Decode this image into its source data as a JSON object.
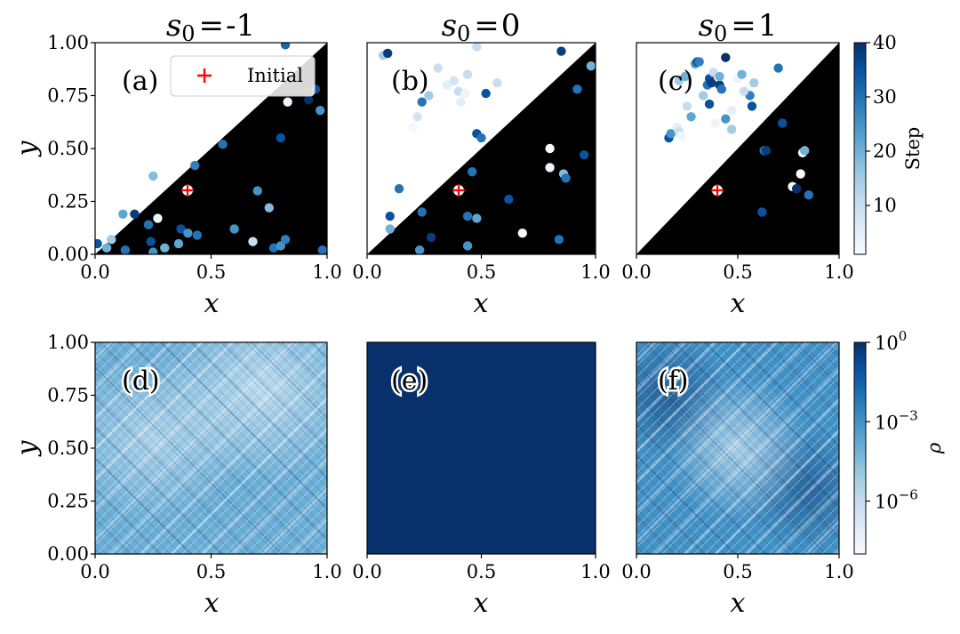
{
  "chart_data": {
    "type": "scatter",
    "figure": "2x3 panel grid",
    "colormap": "Blues",
    "top_row": {
      "panels": [
        {
          "label": "(a)",
          "title_var": "s",
          "title_sub": "0",
          "title_eq": "=",
          "title_val": "-1",
          "shaded_region": "y < x",
          "legend": "Initial"
        },
        {
          "label": "(b)",
          "title_var": "s",
          "title_sub": "0",
          "title_eq": "=",
          "title_val": "0",
          "shaded_region": "y < x"
        },
        {
          "label": "(c)",
          "title_var": "s",
          "title_sub": "0",
          "title_eq": "=",
          "title_val": "1",
          "shaded_region": "y < x"
        }
      ],
      "initial_point": {
        "x": 0.4,
        "y": 0.3
      },
      "points": [
        [
          [
            0.01,
            0.05,
            35
          ],
          [
            0.05,
            0.03,
            20
          ],
          [
            0.07,
            0.07,
            15
          ],
          [
            0.12,
            0.19,
            22
          ],
          [
            0.17,
            0.19,
            38
          ],
          [
            0.23,
            0.14,
            30
          ],
          [
            0.24,
            0.06,
            35
          ],
          [
            0.25,
            0.37,
            18
          ],
          [
            0.25,
            0.01,
            25
          ],
          [
            0.27,
            0.17,
            3
          ],
          [
            0.37,
            0.12,
            35
          ],
          [
            0.4,
            0.1,
            25
          ],
          [
            0.43,
            0.42,
            28
          ],
          [
            0.44,
            0.09,
            30
          ],
          [
            0.68,
            0.06,
            10
          ],
          [
            0.75,
            0.22,
            18
          ],
          [
            0.77,
            0.03,
            30
          ],
          [
            0.8,
            0.04,
            25
          ],
          [
            0.82,
            0.07,
            28
          ],
          [
            0.83,
            0.72,
            3
          ],
          [
            0.82,
            0.99,
            32
          ],
          [
            0.92,
            0.73,
            40
          ],
          [
            0.95,
            0.78,
            35
          ],
          [
            0.97,
            0.68,
            25
          ],
          [
            0.98,
            0.02,
            30
          ],
          [
            0.8,
            0.55,
            35
          ],
          [
            0.6,
            0.12,
            25
          ],
          [
            0.55,
            0.52,
            30
          ],
          [
            0.13,
            0.02,
            30
          ],
          [
            0.36,
            0.05,
            22
          ],
          [
            0.7,
            0.3,
            25
          ],
          [
            0.3,
            0.03,
            20
          ]
        ],
        [
          [
            0.07,
            0.94,
            15
          ],
          [
            0.09,
            0.95,
            38
          ],
          [
            0.1,
            0.18,
            35
          ],
          [
            0.1,
            0.12,
            20
          ],
          [
            0.14,
            0.31,
            30
          ],
          [
            0.2,
            0.6,
            2
          ],
          [
            0.22,
            0.65,
            8
          ],
          [
            0.23,
            0.02,
            25
          ],
          [
            0.24,
            0.72,
            30
          ],
          [
            0.24,
            0.2,
            30
          ],
          [
            0.27,
            0.75,
            15
          ],
          [
            0.28,
            0.08,
            38
          ],
          [
            0.31,
            0.88,
            10
          ],
          [
            0.35,
            0.8,
            5
          ],
          [
            0.38,
            0.82,
            8
          ],
          [
            0.4,
            0.77,
            10
          ],
          [
            0.41,
            0.72,
            5
          ],
          [
            0.43,
            0.76,
            3
          ],
          [
            0.44,
            0.85,
            10
          ],
          [
            0.44,
            0.18,
            30
          ],
          [
            0.44,
            0.04,
            25
          ],
          [
            0.46,
            0.39,
            30
          ],
          [
            0.48,
            0.98,
            10
          ],
          [
            0.48,
            0.57,
            35
          ],
          [
            0.5,
            0.55,
            30
          ],
          [
            0.52,
            0.76,
            35
          ],
          [
            0.57,
            0.81,
            10
          ],
          [
            0.62,
            0.26,
            35
          ],
          [
            0.68,
            0.1,
            1
          ],
          [
            0.8,
            0.5,
            1
          ],
          [
            0.8,
            0.41,
            3
          ],
          [
            0.84,
            0.07,
            30
          ],
          [
            0.85,
            0.96,
            38
          ],
          [
            0.86,
            0.38,
            18
          ],
          [
            0.87,
            0.36,
            30
          ],
          [
            0.92,
            0.78,
            30
          ],
          [
            0.95,
            0.47,
            35
          ],
          [
            0.98,
            0.89,
            20
          ],
          [
            0.48,
            0.17,
            22
          ]
        ],
        [
          [
            0.16,
            0.55,
            35
          ],
          [
            0.17,
            0.57,
            25
          ],
          [
            0.2,
            0.6,
            5
          ],
          [
            0.21,
            0.58,
            10
          ],
          [
            0.21,
            0.82,
            15
          ],
          [
            0.22,
            0.56,
            3
          ],
          [
            0.24,
            0.84,
            20
          ],
          [
            0.25,
            0.7,
            10
          ],
          [
            0.27,
            0.65,
            22
          ],
          [
            0.29,
            0.9,
            25
          ],
          [
            0.3,
            0.91,
            35
          ],
          [
            0.31,
            0.91,
            28
          ],
          [
            0.33,
            0.75,
            15
          ],
          [
            0.35,
            0.8,
            30
          ],
          [
            0.36,
            0.83,
            35
          ],
          [
            0.36,
            0.71,
            35
          ],
          [
            0.37,
            0.81,
            38
          ],
          [
            0.38,
            0.86,
            10
          ],
          [
            0.39,
            0.62,
            3
          ],
          [
            0.41,
            0.8,
            38
          ],
          [
            0.41,
            0.84,
            20
          ],
          [
            0.42,
            0.78,
            30
          ],
          [
            0.44,
            0.93,
            40
          ],
          [
            0.44,
            0.64,
            25
          ],
          [
            0.47,
            0.68,
            5
          ],
          [
            0.5,
            0.83,
            3
          ],
          [
            0.52,
            0.85,
            20
          ],
          [
            0.55,
            0.78,
            2
          ],
          [
            0.56,
            0.75,
            28
          ],
          [
            0.57,
            0.7,
            35
          ],
          [
            0.58,
            0.81,
            15
          ],
          [
            0.62,
            0.2,
            35
          ],
          [
            0.63,
            0.49,
            30
          ],
          [
            0.64,
            0.49,
            38
          ],
          [
            0.7,
            0.88,
            30
          ],
          [
            0.72,
            0.62,
            35
          ],
          [
            0.77,
            0.32,
            2
          ],
          [
            0.79,
            0.31,
            40
          ],
          [
            0.81,
            0.38,
            1
          ],
          [
            0.82,
            0.48,
            2
          ],
          [
            0.83,
            0.49,
            20
          ],
          [
            0.85,
            0.28,
            30
          ],
          [
            0.53,
            0.77,
            10
          ],
          [
            0.47,
            0.59,
            15
          ]
        ]
      ]
    },
    "bottom_row": {
      "panels": [
        {
          "label": "(d)",
          "density_pattern": "multifractal, diagonal structure"
        },
        {
          "label": "(e)",
          "density_pattern": "uniform"
        },
        {
          "label": "(f)",
          "density_pattern": "multifractal, diagonal structure"
        }
      ]
    },
    "axes": {
      "xlabel": "x",
      "ylabel": "y",
      "xlim": [
        0,
        1
      ],
      "ylim": [
        0,
        1
      ],
      "xticks": [
        "0.0",
        "0.5",
        "1.0"
      ],
      "yticks": [
        "0.00",
        "0.25",
        "0.50",
        "0.75",
        "1.00"
      ]
    },
    "colorbar_step": {
      "label": "Step",
      "range": [
        1,
        40
      ],
      "ticks": [
        "10",
        "20",
        "30",
        "40"
      ]
    },
    "colorbar_rho": {
      "label": "ρ",
      "scale": "log",
      "range_log10": [
        -8,
        0
      ],
      "ticks": [
        {
          "base": "10",
          "exp": "0",
          "log10": 0
        },
        {
          "base": "10",
          "exp": "−3",
          "log10": -3
        },
        {
          "base": "10",
          "exp": "−6",
          "log10": -6
        }
      ]
    }
  },
  "colors": {
    "shaded": "#000000",
    "initial_marker": "#ff0000",
    "blues_low": "#f7fbff",
    "blues_high": "#08306b"
  }
}
